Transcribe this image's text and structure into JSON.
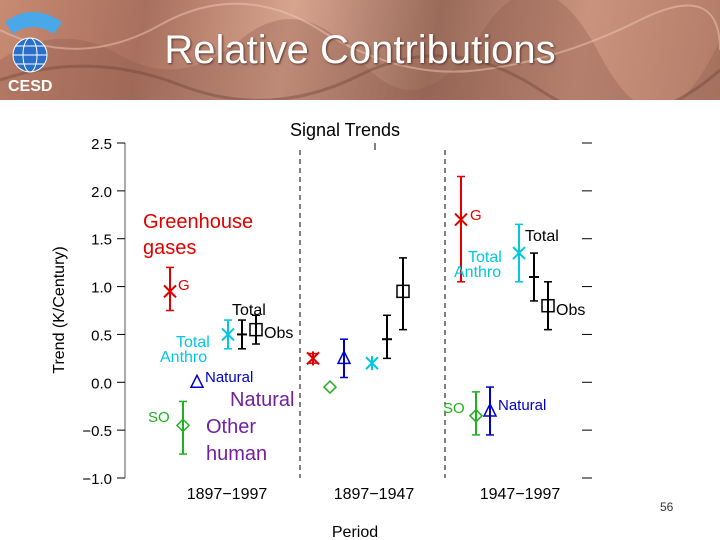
{
  "slide": {
    "title": "Relative Contributions",
    "logo_text": "CESD",
    "page_number": "56"
  },
  "colors": {
    "ghg": "#e00000",
    "total": "#000000",
    "total_anthro": "#00c8e0",
    "natural": "#0000cc",
    "so": "#20b020",
    "purple": "#7020a0"
  },
  "chart_data": {
    "type": "scatter",
    "title": "Signal Trends",
    "xlabel": "Period",
    "ylabel": "Trend (K/Century)",
    "ylim": [
      -1.0,
      2.5
    ],
    "yticks": [
      "2.5",
      "2.0",
      "1.5",
      "1.0",
      "0.5",
      "0.0",
      "−0.5",
      "−1.0"
    ],
    "ytick_values": [
      2.5,
      2.0,
      1.5,
      1.0,
      0.5,
      0.0,
      -0.5,
      -1.0
    ],
    "periods": [
      "1897−1997",
      "1897−1947",
      "1947−1997"
    ],
    "series": [
      {
        "name": "G",
        "color_key": "ghg",
        "marker": "star",
        "points": [
          {
            "period": 0,
            "y": 0.95,
            "low": 0.75,
            "high": 1.2
          },
          {
            "period": 1,
            "y": 0.25,
            "low": 0.2,
            "high": 0.3
          },
          {
            "period": 2,
            "y": 1.7,
            "low": 1.05,
            "high": 2.15
          }
        ]
      },
      {
        "name": "Total",
        "color_key": "total",
        "marker": "bar",
        "points": [
          {
            "period": 0,
            "y": 0.5,
            "low": 0.35,
            "high": 0.65
          },
          {
            "period": 1,
            "y": 0.45,
            "low": 0.25,
            "high": 0.7
          },
          {
            "period": 2,
            "y": 1.1,
            "low": 0.85,
            "high": 1.35
          }
        ]
      },
      {
        "name": "Total Anthro",
        "color_key": "total_anthro",
        "marker": "star",
        "points": [
          {
            "period": 0,
            "y": 0.5,
            "low": 0.35,
            "high": 0.65
          },
          {
            "period": 1,
            "y": 0.2,
            "low": 0.2,
            "high": 0.2
          },
          {
            "period": 2,
            "y": 1.35,
            "low": 1.05,
            "high": 1.65
          }
        ]
      },
      {
        "name": "Obs",
        "color_key": "total",
        "marker": "square",
        "points": [
          {
            "period": 0,
            "y": 0.55,
            "low": 0.4,
            "high": 0.7
          },
          {
            "period": 1,
            "y": 0.95,
            "low": 0.55,
            "high": 1.3
          },
          {
            "period": 2,
            "y": 0.8,
            "low": 0.55,
            "high": 1.05
          }
        ]
      },
      {
        "name": "Natural",
        "color_key": "natural",
        "marker": "triangle",
        "points": [
          {
            "period": 0,
            "y": 0.0,
            "low": 0.0,
            "high": 0.0
          },
          {
            "period": 1,
            "y": 0.25,
            "low": 0.05,
            "high": 0.45
          },
          {
            "period": 2,
            "y": -0.3,
            "low": -0.55,
            "high": -0.05
          }
        ]
      },
      {
        "name": "SO",
        "color_key": "so",
        "marker": "diamond",
        "points": [
          {
            "period": 0,
            "y": -0.45,
            "low": -0.75,
            "high": -0.2
          },
          {
            "period": 1,
            "y": -0.05,
            "low": -0.05,
            "high": -0.05
          },
          {
            "period": 2,
            "y": -0.35,
            "low": -0.55,
            "high": -0.1
          }
        ]
      }
    ],
    "annotations": {
      "greenhouse": [
        "Greenhouse",
        "gases"
      ],
      "g": "G",
      "total": "Total",
      "total_anthro": [
        "Total",
        "Anthro"
      ],
      "obs": "Obs",
      "natural": "Natural",
      "so": "SO",
      "natural_other_human": [
        "Natural",
        "Other",
        "human"
      ]
    },
    "grid": false
  }
}
